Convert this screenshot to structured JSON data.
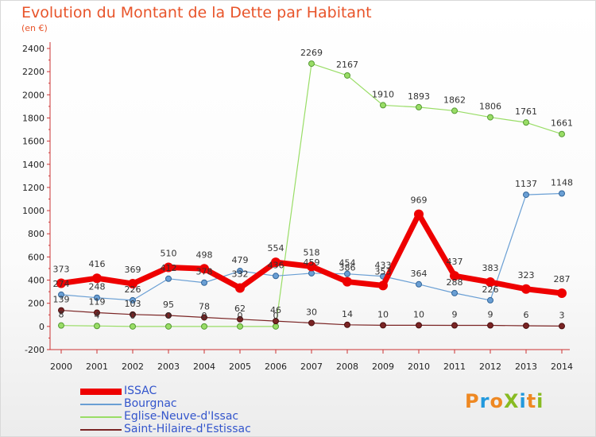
{
  "chart_data": {
    "type": "line",
    "title": "Evolution du Montant de la Dette par Habitant",
    "subtitle": "(en €)",
    "x": [
      "2000",
      "2001",
      "2002",
      "2003",
      "2004",
      "2005",
      "2006",
      "2007",
      "2008",
      "2009",
      "2010",
      "2011",
      "2012",
      "2013",
      "2014"
    ],
    "ylim": [
      -200,
      2400
    ],
    "yticks": [
      -200,
      0,
      200,
      400,
      600,
      800,
      1000,
      1200,
      1400,
      1600,
      1800,
      2000,
      2200,
      2400
    ],
    "grid": false,
    "legend_position": "bottom-left",
    "series": [
      {
        "name": "ISSAC",
        "color": "#ee0000",
        "values": [
          373,
          416,
          369,
          510,
          498,
          332,
          554,
          518,
          386,
          353,
          969,
          437,
          383,
          323,
          287
        ]
      },
      {
        "name": "Bourgnac",
        "color": "#6a9fd4",
        "values": [
          274,
          248,
          226,
          412,
          378,
          479,
          436,
          459,
          454,
          433,
          364,
          288,
          226,
          1137,
          1148
        ]
      },
      {
        "name": "Eglise-Neuve-d'Issac",
        "color": "#99dd66",
        "values": [
          8,
          4,
          0,
          0,
          0,
          0,
          0,
          2269,
          2167,
          1910,
          1893,
          1862,
          1806,
          1761,
          1661
        ]
      },
      {
        "name": "Saint-Hilaire-d'Estissac",
        "color": "#7a2424",
        "values": [
          139,
          119,
          103,
          95,
          78,
          62,
          46,
          30,
          14,
          10,
          10,
          9,
          9,
          6,
          3
        ]
      }
    ]
  },
  "logo": {
    "text": "ProXiti",
    "colors": [
      "#ee8822",
      "#2299dd",
      "#ee8822",
      "#88bb22",
      "#2299dd",
      "#ee8822",
      "#88bb22"
    ]
  }
}
